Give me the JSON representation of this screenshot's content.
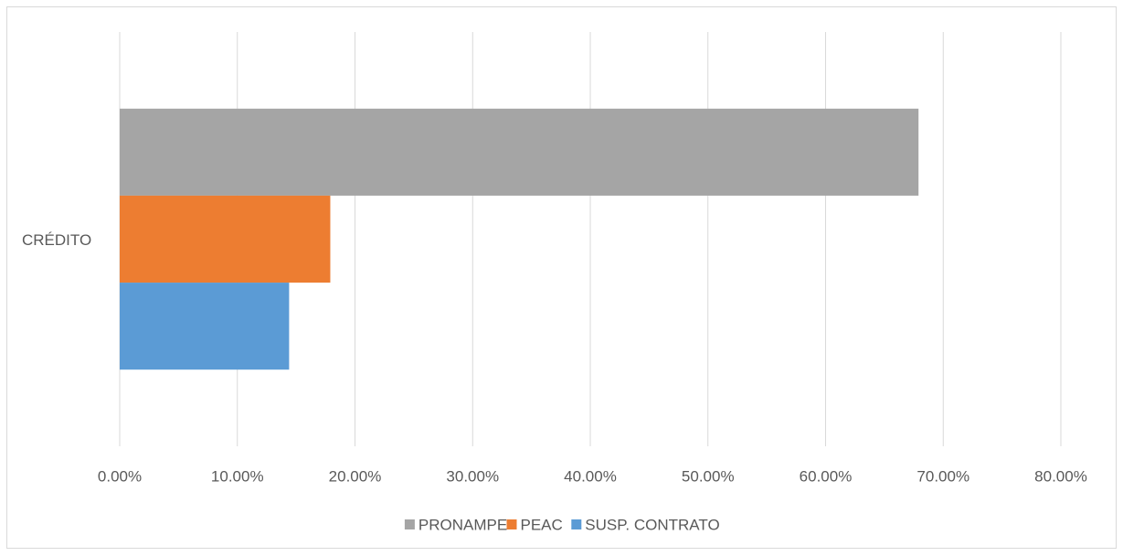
{
  "chart_data": {
    "type": "bar",
    "orientation": "horizontal",
    "categories": [
      "CRÉDITO"
    ],
    "series": [
      {
        "name": "PRONAMPE",
        "color": "#a5a5a5",
        "values": [
          67.9
        ]
      },
      {
        "name": "PEAC",
        "color": "#ed7d31",
        "values": [
          17.9
        ]
      },
      {
        "name": "SUSP. CONTRATO",
        "color": "#5b9bd5",
        "values": [
          14.4
        ]
      }
    ],
    "xlim": [
      0,
      80
    ],
    "xticks": [
      {
        "value": 0,
        "label": "0.00%"
      },
      {
        "value": 10,
        "label": "10.00%"
      },
      {
        "value": 20,
        "label": "20.00%"
      },
      {
        "value": 30,
        "label": "30.00%"
      },
      {
        "value": 40,
        "label": "40.00%"
      },
      {
        "value": 50,
        "label": "50.00%"
      },
      {
        "value": 60,
        "label": "60.00%"
      },
      {
        "value": 70,
        "label": "70.00%"
      },
      {
        "value": 80,
        "label": "80.00%"
      }
    ],
    "grid": true,
    "legend": "bottom"
  }
}
